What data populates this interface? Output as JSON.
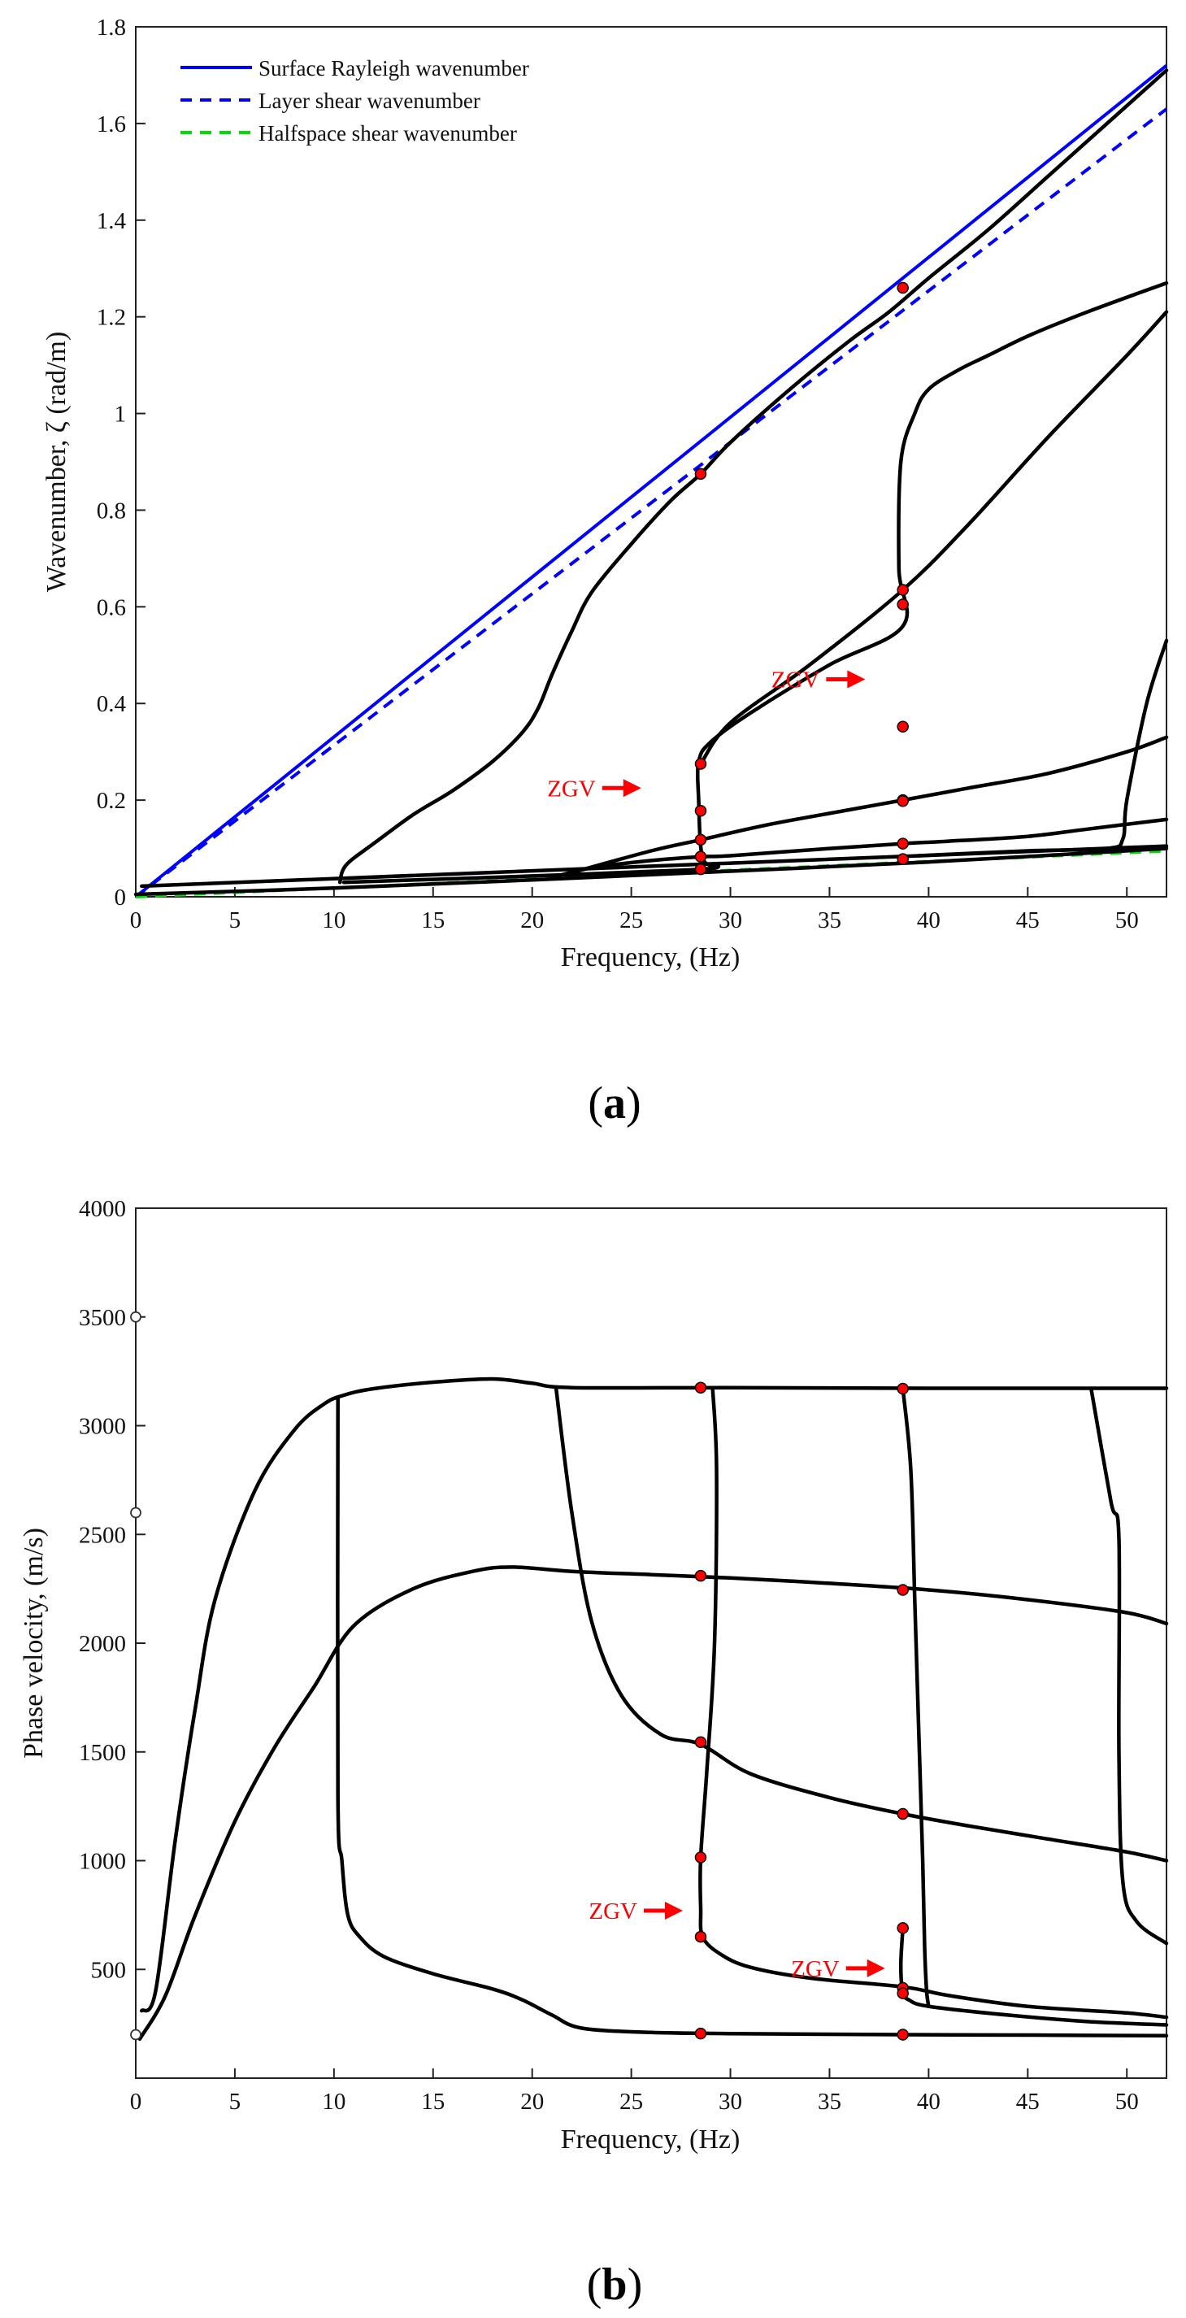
{
  "colors": {
    "curve": "#000000",
    "rayleigh": "#0000ff",
    "layer_shear": "#0000ff",
    "halfspace_shear": "#00dd00",
    "marker": "#ff0000",
    "annotation": "#ff0000"
  },
  "chart_data": [
    {
      "id": "a",
      "type": "line",
      "panel_label": "a",
      "xlabel": "Frequency, (Hz)",
      "ylabel": "Wavenumber, ζ (rad/m)",
      "xlim": [
        0,
        52
      ],
      "ylim": [
        0,
        1.8
      ],
      "xticks": [
        0,
        5,
        10,
        15,
        20,
        25,
        30,
        35,
        40,
        45,
        50
      ],
      "xtick_labels": [
        "0",
        "5",
        "10",
        "15",
        "20",
        "25",
        "30",
        "35",
        "40",
        "45",
        "50"
      ],
      "yticks": [
        0,
        0.2,
        0.4,
        0.6,
        0.8,
        1.0,
        1.2,
        1.4,
        1.6,
        1.8
      ],
      "ytick_labels": [
        "0",
        "0.2",
        "0.4",
        "0.6",
        "0.8",
        "1",
        "1.2",
        "1.4",
        "1.6",
        "1.8"
      ],
      "legend_position": "top-left",
      "reference_lines": [
        {
          "name": "Surface Rayleigh wavenumber",
          "style": "solid",
          "color_key": "rayleigh",
          "x": [
            0,
            52
          ],
          "y": [
            0,
            1.72
          ]
        },
        {
          "name": "Layer shear wavenumber",
          "style": "dashed",
          "color_key": "layer_shear",
          "x": [
            0,
            52
          ],
          "y": [
            0,
            1.63
          ]
        },
        {
          "name": "Halfspace shear wavenumber",
          "style": "dashed",
          "color_key": "halfspace_shear",
          "x": [
            0,
            52
          ],
          "y": [
            0,
            0.095
          ]
        }
      ],
      "modes": [
        {
          "x": [
            0,
            10,
            20,
            30,
            40,
            52
          ],
          "y": [
            0.005,
            0.018,
            0.035,
            0.053,
            0.072,
            0.1
          ]
        },
        {
          "x": [
            0.3,
            52
          ],
          "y": [
            0.022,
            0.105
          ]
        },
        {
          "x": [
            10.3,
            10.4,
            10.6,
            11,
            12,
            14,
            16,
            18,
            19.5,
            20.3,
            21,
            22,
            23,
            25,
            27,
            28.5,
            30,
            33,
            36,
            38,
            40,
            43,
            46,
            49,
            52
          ],
          "y": [
            0.03,
            0.05,
            0.065,
            0.08,
            0.11,
            0.17,
            0.22,
            0.28,
            0.34,
            0.39,
            0.46,
            0.55,
            0.63,
            0.73,
            0.82,
            0.875,
            0.94,
            1.05,
            1.15,
            1.21,
            1.28,
            1.38,
            1.49,
            1.6,
            1.71
          ]
        },
        {
          "x": [
            10.5,
            15,
            20,
            25,
            28.5,
            29.4,
            28.6,
            28.4,
            28.4,
            29,
            31,
            35,
            38.7,
            38.5,
            38.6,
            39.3,
            40,
            41.5,
            43,
            45,
            48,
            52
          ],
          "y": [
            0.03,
            0.036,
            0.043,
            0.051,
            0.057,
            0.063,
            0.08,
            0.2,
            0.28,
            0.32,
            0.38,
            0.48,
            0.56,
            0.68,
            0.9,
            1.0,
            1.05,
            1.09,
            1.12,
            1.16,
            1.21,
            1.27
          ]
        },
        {
          "x": [
            21,
            23,
            26,
            28.5,
            30,
            35,
            38.7,
            41,
            45,
            48,
            52
          ],
          "y": [
            0.04,
            0.06,
            0.075,
            0.083,
            0.085,
            0.1,
            0.11,
            0.115,
            0.125,
            0.14,
            0.16
          ]
        },
        {
          "x": [
            22,
            26,
            28.5,
            32,
            36,
            38.7,
            42,
            46,
            50,
            52
          ],
          "y": [
            0.05,
            0.095,
            0.118,
            0.15,
            0.18,
            0.2,
            0.225,
            0.255,
            0.3,
            0.33
          ]
        },
        {
          "x": [
            28.5,
            30,
            34,
            38.7,
            42,
            46,
            50,
            52
          ],
          "y": [
            0.275,
            0.36,
            0.48,
            0.635,
            0.77,
            0.95,
            1.12,
            1.21
          ]
        },
        {
          "x": [
            39.5,
            45,
            49,
            49.8,
            50,
            51,
            52
          ],
          "y": [
            0.085,
            0.095,
            0.1,
            0.12,
            0.2,
            0.4,
            0.53
          ]
        }
      ],
      "markers": {
        "x": [
          28.5,
          28.5,
          28.5,
          28.5,
          28.5,
          28.5,
          38.7,
          38.7,
          38.7,
          38.7,
          38.7,
          38.7,
          38.7,
          38.7
        ],
        "y": [
          0.057,
          0.083,
          0.118,
          0.178,
          0.275,
          0.875,
          0.078,
          0.11,
          0.2,
          0.352,
          0.605,
          0.635,
          1.26,
          0.198
        ]
      },
      "annotations": [
        {
          "text": "ZGV",
          "arrow_tip": [
            25.5,
            0.225
          ]
        },
        {
          "text": "ZGV",
          "arrow_tip": [
            36.8,
            0.45
          ]
        }
      ]
    },
    {
      "id": "b",
      "type": "line",
      "panel_label": "b",
      "xlabel": "Frequency, (Hz)",
      "ylabel": "Phase velocity, (m/s)",
      "xlim": [
        0,
        52
      ],
      "ylim": [
        0,
        4000
      ],
      "xticks": [
        0,
        5,
        10,
        15,
        20,
        25,
        30,
        35,
        40,
        45,
        50
      ],
      "xtick_labels": [
        "0",
        "5",
        "10",
        "15",
        "20",
        "25",
        "30",
        "35",
        "40",
        "45",
        "50"
      ],
      "yticks": [
        500,
        1000,
        1500,
        2000,
        2500,
        3000,
        3500,
        4000
      ],
      "ytick_labels": [
        "500",
        "1000",
        "1500",
        "2000",
        "2500",
        "3000",
        "3500",
        "4000"
      ],
      "axis_points": {
        "x": [
          0,
          0,
          0
        ],
        "y": [
          3500,
          2600,
          200
        ]
      },
      "modes": [
        {
          "x": [
            0.3,
            1,
            2,
            3,
            4,
            6,
            8,
            9.5,
            10.5,
            12,
            15,
            18,
            20,
            22,
            30,
            40,
            52
          ],
          "y": [
            310,
            400,
            1100,
            1700,
            2200,
            2700,
            2980,
            3100,
            3140,
            3170,
            3200,
            3215,
            3195,
            3175,
            3175,
            3172,
            3172
          ]
        },
        {
          "x": [
            0.2,
            1.5,
            3,
            5,
            7,
            9,
            11,
            14,
            17,
            19,
            22,
            26,
            30,
            35,
            40,
            45,
            50,
            52
          ],
          "y": [
            180,
            380,
            750,
            1180,
            1520,
            1800,
            2080,
            2250,
            2330,
            2350,
            2330,
            2315,
            2300,
            2275,
            2245,
            2200,
            2140,
            2090
          ]
        },
        {
          "x": [
            10.2,
            10.2,
            10.4,
            10.7,
            11.3,
            12.5,
            15,
            18,
            19.5,
            21,
            22.5,
            26,
            30,
            38.7,
            45,
            52
          ],
          "y": [
            3130,
            1300,
            1000,
            750,
            650,
            560,
            480,
            410,
            360,
            290,
            230,
            210,
            205,
            200,
            198,
            195
          ]
        },
        {
          "x": [
            21.2,
            22,
            23,
            24.5,
            26.5,
            28.5,
            31,
            35,
            38.7,
            42,
            46,
            50,
            52
          ],
          "y": [
            3175,
            2600,
            2100,
            1760,
            1580,
            1535,
            1400,
            1290,
            1215,
            1160,
            1100,
            1040,
            1000
          ]
        },
        {
          "x": [
            29.1,
            29.3,
            29.2,
            28.8,
            28.5,
            28.5,
            28.6,
            29.5,
            31,
            34,
            38.7,
            41,
            45,
            50,
            52
          ],
          "y": [
            3175,
            2800,
            2000,
            1400,
            1015,
            780,
            650,
            570,
            510,
            460,
            420,
            380,
            330,
            300,
            280
          ]
        },
        {
          "x": [
            38.7,
            39.1,
            39.3,
            39.5,
            39.7,
            39.8,
            39.9,
            40
          ],
          "y": [
            3170,
            2800,
            2200,
            1600,
            1000,
            600,
            400,
            330
          ]
        },
        {
          "x": [
            38.7,
            38.6,
            38.7,
            39,
            40,
            44,
            48,
            52
          ],
          "y": [
            690,
            520,
            395,
            360,
            330,
            290,
            260,
            245
          ]
        },
        {
          "x": [
            48.2,
            49.2,
            49.6,
            49.6,
            49.8,
            50.5,
            52
          ],
          "y": [
            3170,
            2650,
            2480,
            1500,
            900,
            720,
            620
          ]
        }
      ],
      "markers": {
        "x": [
          28.5,
          28.5,
          28.5,
          28.5,
          28.5,
          28.5,
          38.7,
          38.7,
          38.7,
          38.7,
          38.7,
          38.7,
          38.7
        ],
        "y": [
          3175,
          2310,
          1545,
          1015,
          650,
          205,
          3170,
          2245,
          1215,
          690,
          415,
          390,
          200
        ]
      },
      "annotations": [
        {
          "text": "ZGV",
          "arrow_tip": [
            27.6,
            770
          ]
        },
        {
          "text": "ZGV",
          "arrow_tip": [
            37.8,
            505
          ]
        }
      ]
    }
  ],
  "legend": [
    {
      "label": "Surface Rayleigh wavenumber",
      "style": "solid",
      "color_key": "rayleigh"
    },
    {
      "label": "Layer shear wavenumber",
      "style": "dashed",
      "color_key": "layer_shear"
    },
    {
      "label": "Halfspace shear wavenumber",
      "style": "dashed",
      "color_key": "halfspace_shear"
    }
  ]
}
